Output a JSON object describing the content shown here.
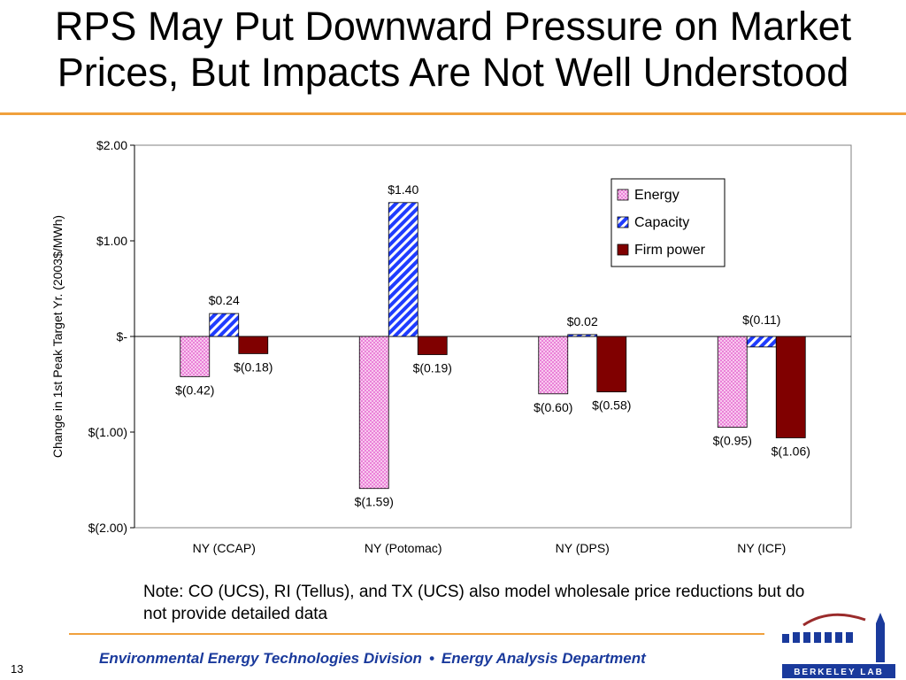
{
  "title": {
    "line1": "RPS May Put Downward Pressure on Market",
    "line2": "Prices, But Impacts Are Not Well Understood"
  },
  "chart_data": {
    "type": "bar",
    "categories": [
      "NY (CCAP)",
      "NY (Potomac)",
      "NY (DPS)",
      "NY (ICF)"
    ],
    "series": [
      {
        "name": "Energy",
        "values": [
          -0.42,
          -1.59,
          -0.6,
          -0.95
        ],
        "labels": [
          "$(0.42)",
          "$(1.59)",
          "$(0.60)",
          "$(0.95)"
        ],
        "color": "#f5a8e6",
        "pattern": "dotted"
      },
      {
        "name": "Capacity",
        "values": [
          0.24,
          1.4,
          0.02,
          -0.11
        ],
        "labels": [
          "$0.24",
          "$1.40",
          "$0.02",
          "$(0.11)"
        ],
        "color": "#1f3cff",
        "pattern": "diagonal"
      },
      {
        "name": "Firm power",
        "values": [
          -0.18,
          -0.19,
          -0.58,
          -1.06
        ],
        "labels": [
          "$(0.18)",
          "$(0.19)",
          "$(0.58)",
          "$(1.06)"
        ],
        "color": "#800000",
        "pattern": "solid"
      }
    ],
    "ylabel": "Change in 1st Peak Target Yr. (2003$/MWh)",
    "xlabel": "",
    "ylim": [
      -2.0,
      2.0
    ],
    "yticks": [
      2.0,
      1.0,
      0.0,
      -1.0,
      -2.0
    ],
    "ytick_labels": [
      "$2.00",
      "$1.00",
      "$-",
      "$(1.00)",
      "$(2.00)"
    ],
    "legend_position": "top-right",
    "grid": false
  },
  "note": "Note: CO (UCS), RI (Tellus), and TX (UCS) also model wholesale price reductions but do not provide detailed data",
  "footer": {
    "left": "Environmental Energy Technologies Division",
    "separator": "•",
    "right": "Energy Analysis Department"
  },
  "page_number": "13",
  "logo": {
    "text": "BERKELEY LAB"
  },
  "colors": {
    "accent_rule": "#f0a03c",
    "footer_text": "#1a3a9c"
  }
}
